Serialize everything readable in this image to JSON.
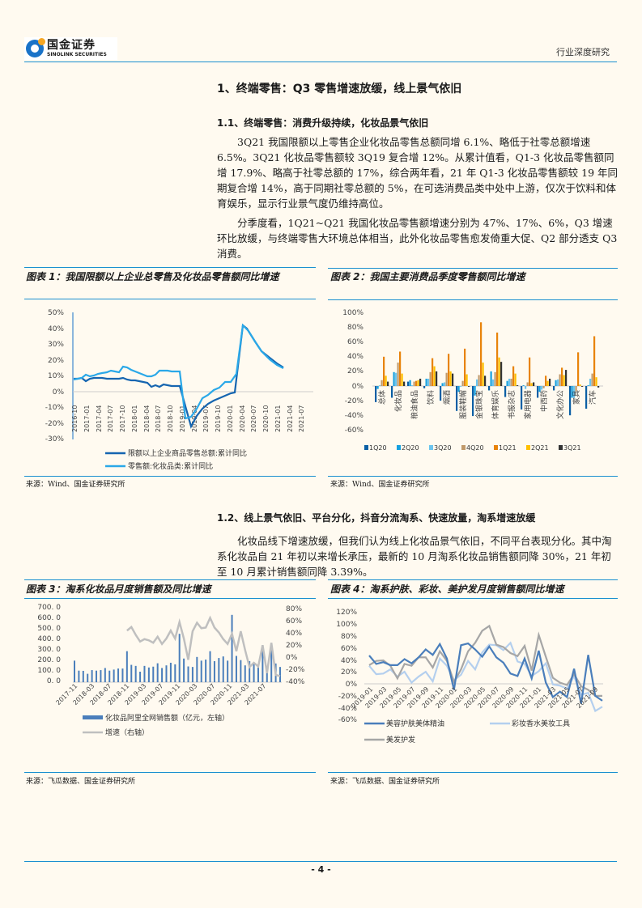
{
  "header": {
    "logo_cn": "国金证券",
    "logo_en": "SINOLINK SECURITIES",
    "report_type": "行业深度研究"
  },
  "section1": {
    "title": "1、终端零售：Q3 零售增速放缓，线上景气依旧",
    "sub1_title": "1.1、终端零售：消费升级持续，化妆品景气依旧",
    "para1": "3Q21 我国限额以上零售企业化妆品零售总额同增 6.1%、略低于社零总额增速 6.5%。3Q21 化妆品零售额较 3Q19 复合增 12%。从累计值看，Q1-3 化妆品零售额同增 17.9%、略高于社零总额的 17%，综合两年看，21 年 Q1-3 化妆品零售额较 19 年同期复合增 14%，高于同期社零总额的 5%，在可选消费品类中处中上游，仅次于饮料和体育娱乐，显示行业景气度仍维持高位。",
    "para2": "分季度看，1Q21~Q21 我国化妆品零售额增速分别为 47%、17%、6%，Q3 增速环比放缓，与终端零售大环境总体相当，此外化妆品零售愈发倚重大促、Q2 部分透支 Q3 消费。",
    "sub2_title": "1.2、线上景气依旧、平台分化，抖音分流淘系、快速放量，淘系增速放缓",
    "para3": "化妆品线下增速放缓，但我们认为线上化妆品景气依旧，不同平台表现分化。其中淘系化妆品自 21 年初以来增长承压，最新的 10 月淘系化妆品销售额同降 30%，21 年初至 10 月累计销售额同降 3.39%。"
  },
  "figures": {
    "fig1": {
      "title": "图表 1：我国限额以上企业总零售及化妆品零售额同比增速",
      "source": "来源：Wind、国金证券研究所"
    },
    "fig2": {
      "title": "图表 2：我国主要消费品季度零售额同比增速",
      "source": "来源：Wind、国金证券研究所"
    },
    "fig3": {
      "title": "图表 3：淘系化妆品月度销售额及同比增速",
      "source": "来源：飞瓜数据、国金证券研究所"
    },
    "fig4": {
      "title": "图表 4：淘系护肤、彩妆、美护发月度销售额同比增速",
      "source": "来源：飞瓜数据、国金证券研究所"
    }
  },
  "footer": {
    "page": "- 4 -"
  },
  "chart_data": [
    {
      "type": "line",
      "title": "我国限额以上企业总零售及化妆品零售额同比增速",
      "ylim": [
        -30,
        50
      ],
      "yticks": [
        "50%",
        "40%",
        "30%",
        "20%",
        "10%",
        "0%",
        "-10%",
        "-20%",
        "-30%"
      ],
      "x_ticks": [
        "2016-10",
        "2017-01",
        "2017-04",
        "2017-07",
        "2017-10",
        "2018-01",
        "2018-04",
        "2018-07",
        "2018-10",
        "2019-01",
        "2019-04",
        "2019-07",
        "2019-10",
        "2020-01",
        "2020-04",
        "2020-07",
        "2020-10",
        "2021-01",
        "2021-04",
        "2021-07"
      ],
      "series": [
        {
          "name": "限额以上企业商品零售总额:累计同比",
          "color": "#1565b0",
          "values": [
            8,
            8,
            8.5,
            6.8,
            8,
            8.5,
            8.7,
            8.6,
            8.4,
            8.2,
            8.1,
            8.3,
            8.5,
            7.8,
            7.3,
            7,
            6.6,
            6,
            5.5,
            3.2,
            3.8,
            3.3,
            4.5,
            4.1,
            3.8,
            3.6,
            3.6,
            -22,
            -15,
            -11,
            -8,
            -6,
            -4,
            -2.5,
            -1.3,
            42,
            40,
            33,
            27,
            23,
            20,
            17
          ]
        },
        {
          "name": "零售额:化妆品类:累计同比",
          "color": "#2aa8e8",
          "values": [
            7.7,
            8,
            8.7,
            10.5,
            9.5,
            10,
            11.2,
            11.7,
            12.2,
            13.4,
            12.5,
            15.9,
            15,
            13.3,
            12.5,
            11.5,
            10.5,
            9.5,
            9,
            9,
            10.5,
            12.8,
            12.5,
            12.6,
            12.3,
            12.6,
            12.6,
            -14,
            -12,
            -5,
            0,
            2,
            5,
            6.5,
            9,
            9.5,
            41,
            40,
            32,
            26,
            22,
            17
          ]
        }
      ],
      "legend_position": "bottom"
    },
    {
      "type": "bar",
      "title": "我国主要消费品季度零售额同比增速",
      "ylim": [
        -60,
        100
      ],
      "yticks": [
        "100%",
        "80%",
        "60%",
        "40%",
        "20%",
        "0%",
        "-20%",
        "-40%",
        "-60%"
      ],
      "categories": [
        "总体",
        "化妆品",
        "粮油食品",
        "饮料",
        "烟酒",
        "服装鞋帽",
        "金银珠宝",
        "体育娱乐",
        "书报杂志",
        "家用电器",
        "中西药",
        "文化办公",
        "家具",
        "汽车"
      ],
      "series": [
        {
          "name": "1Q20",
          "color": "#0b5fa5",
          "values": [
            -22,
            -16,
            6,
            -3,
            -20,
            -34,
            -41,
            -6,
            -15,
            -32,
            -16,
            -6,
            -40,
            -31
          ]
        },
        {
          "name": "2Q20",
          "color": "#15a0e0",
          "values": [
            -4,
            19,
            8,
            10,
            4,
            -8,
            -13,
            20,
            7,
            1,
            -8,
            8,
            -16,
            1
          ]
        },
        {
          "name": "3Q20",
          "color": "#6cc4ee",
          "values": [
            1,
            18,
            1,
            10,
            5,
            -1,
            9,
            9,
            10,
            -4,
            -5,
            9,
            -16,
            10
          ]
        },
        {
          "name": "4Q20",
          "color": "#c19a6b",
          "values": [
            8,
            32,
            6,
            19,
            18,
            7,
            15,
            19,
            10,
            5,
            -3,
            16,
            -7,
            17
          ]
        },
        {
          "name": "1Q21",
          "color": "#e8830a",
          "values": [
            40,
            47,
            7,
            38,
            44,
            51,
            87,
            73,
            27,
            39,
            14,
            25,
            46,
            68
          ]
        },
        {
          "name": "2Q21",
          "color": "#ffc000",
          "values": [
            14,
            17,
            8,
            27,
            20,
            16,
            32,
            39,
            17,
            4,
            7,
            15,
            2,
            12
          ]
        },
        {
          "name": "3Q21",
          "color": "#333333",
          "values": [
            6,
            6,
            10,
            20,
            17,
            -1,
            14,
            33,
            1,
            5,
            10,
            22,
            -1,
            -2
          ]
        }
      ],
      "legend_position": "bottom"
    },
    {
      "type": "bar+line",
      "title": "淘系化妆品月度销售额及同比增速",
      "ylim_left": [
        0,
        700
      ],
      "ylim_right": [
        -40,
        80
      ],
      "yticks_left": [
        "700.0",
        "600.0",
        "500.0",
        "400.0",
        "300.0",
        "200.0",
        "100.0",
        "0.0"
      ],
      "yticks_right": [
        "80%",
        "60%",
        "40%",
        "20%",
        "0%",
        "-20%",
        "-40%"
      ],
      "x_ticks": [
        "2017-11",
        "2018-03",
        "2018-07",
        "2018-11",
        "2019-03",
        "2019-07",
        "2019-11",
        "2020-03",
        "2020-07",
        "2020-11",
        "2021-03",
        "2021-07"
      ],
      "series": [
        {
          "name": "化妆品阿里全网销售额（亿元，左轴）",
          "color": "#4a7ebb",
          "type": "bar",
          "values": [
            205,
            110,
            108,
            80,
            115,
            110,
            115,
            135,
            110,
            120,
            130,
            130,
            295,
            165,
            155,
            100,
            155,
            140,
            148,
            180,
            135,
            160,
            185,
            170,
            460,
            225,
            150,
            145,
            240,
            205,
            215,
            295,
            200,
            230,
            245,
            205,
            640,
            250,
            210,
            160,
            200,
            175,
            140,
            300,
            120,
            310,
            178,
            145
          ]
        },
        {
          "name": "增速（右轴）",
          "color": "#bfbfbf",
          "type": "line",
          "values": [
            null,
            null,
            null,
            null,
            null,
            null,
            null,
            null,
            null,
            null,
            null,
            null,
            45,
            51,
            38,
            27,
            31,
            29,
            25,
            35,
            23,
            32,
            45,
            32,
            59,
            32,
            -3,
            44,
            58,
            49,
            50,
            66,
            50,
            42,
            31,
            23,
            40,
            11,
            44,
            13,
            -15,
            -8,
            -14,
            21,
            -25,
            25,
            -28,
            -30
          ]
        }
      ]
    },
    {
      "type": "line",
      "title": "淘系护肤、彩妆、美护发月度销售额同比增速",
      "ylim": [
        -60,
        120
      ],
      "yticks": [
        "120%",
        "100%",
        "80%",
        "60%",
        "40%",
        "20%",
        "0%",
        "-20%",
        "-40%",
        "-60%"
      ],
      "x_ticks": [
        "2019-01",
        "2019-03",
        "2019-05",
        "2019-07",
        "2019-09",
        "2019-11",
        "2020-01",
        "2020-03",
        "2020-05",
        "2020-07",
        "2020-09",
        "2020-11",
        "2021-01",
        "2021-03",
        "2021-05",
        "2021-07",
        "2021-09"
      ],
      "series": [
        {
          "name": "美容护肤美体精油",
          "color": "#4a7ebb",
          "values": [
            47,
            33,
            36,
            31,
            31,
            41,
            34,
            44,
            57,
            48,
            66,
            42,
            -10,
            64,
            67,
            57,
            45,
            62,
            44,
            35,
            17,
            13,
            42,
            9,
            55,
            2,
            -22,
            -13,
            -22,
            25,
            -33,
            48,
            -20,
            -28
          ]
        },
        {
          "name": "彩妆香水美妆工具",
          "color": "#b4cfee",
          "values": [
            30,
            16,
            17,
            24,
            12,
            20,
            2,
            12,
            20,
            4,
            42,
            30,
            6,
            15,
            38,
            24,
            52,
            65,
            64,
            56,
            68,
            37,
            33,
            13,
            21,
            34,
            -1,
            -3,
            -8,
            13,
            -18,
            -15,
            -45,
            -38
          ]
        },
        {
          "name": "美发护发",
          "color": "#a6a6a6",
          "values": [
            31,
            38,
            39,
            30,
            9,
            33,
            30,
            44,
            44,
            27,
            54,
            38,
            3,
            24,
            54,
            68,
            88,
            96,
            65,
            61,
            51,
            46,
            63,
            22,
            81,
            45,
            10,
            2,
            -2,
            16,
            -4,
            -10,
            -20,
            -20
          ]
        }
      ]
    }
  ]
}
